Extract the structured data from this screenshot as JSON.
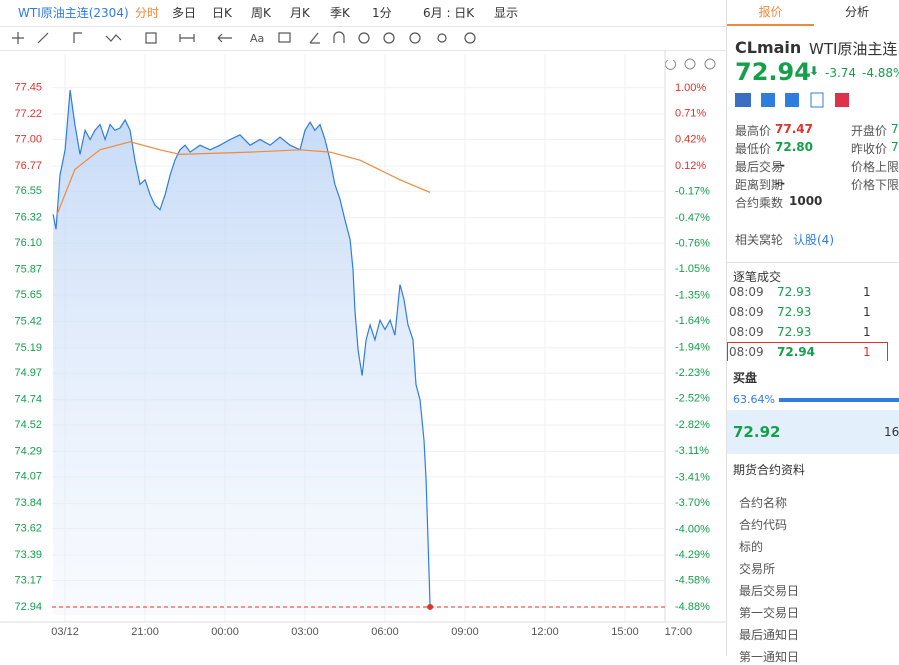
{
  "toolbar": {
    "symbol": "WTI原油主连(2304)",
    "tabs": [
      "分时",
      "多日",
      "日K",
      "周K",
      "月K",
      "季K",
      "1分",
      "6月 : 日K",
      "显示"
    ]
  },
  "chart_data": {
    "type": "line",
    "xlim": [
      -0.49,
      22.5
    ],
    "xticks": [
      {
        "value": 0,
        "label": "03/12"
      },
      {
        "value": 3,
        "label": "21:00"
      },
      {
        "value": 6,
        "label": "00:00"
      },
      {
        "value": 9,
        "label": "03:00"
      },
      {
        "value": 12,
        "label": "06:00"
      },
      {
        "value": 15,
        "label": "09:00"
      },
      {
        "value": 18,
        "label": "12:00"
      },
      {
        "value": 21,
        "label": "15:00"
      },
      {
        "value": 23,
        "label": "17:00"
      }
    ],
    "ylim": [
      72.87,
      77.56
    ],
    "yticks": [
      77.45,
      77.22,
      {
        "value": 77,
        "label": "77.00"
      },
      76.77,
      76.55,
      76.32,
      {
        "value": 76.1,
        "label": "76.10"
      },
      75.87,
      75.65,
      75.42,
      75.19,
      74.97,
      74.74,
      74.52,
      74.29,
      74.07,
      73.84,
      73.62,
      73.39,
      73.17,
      72.94
    ],
    "y2lim": [
      -4.97,
      1.15
    ],
    "y2ticks": [
      {
        "value": 1,
        "label": "1.00%"
      },
      {
        "value": 0.71,
        "label": "0.71%"
      },
      {
        "value": 0.42,
        "label": "0.42%"
      },
      {
        "value": 0.12,
        "label": "0.12%"
      },
      {
        "value": -0.17,
        "label": "-0.17%"
      },
      {
        "value": -0.47,
        "label": "-0.47%"
      },
      {
        "value": -0.76,
        "label": "-0.76%"
      },
      {
        "value": -1.05,
        "label": "-1.05%"
      },
      {
        "value": -1.35,
        "label": "-1.35%"
      },
      {
        "value": -1.64,
        "label": "-1.64%"
      },
      {
        "value": -1.94,
        "label": "-1.94%"
      },
      {
        "value": -2.23,
        "label": "-2.23%"
      },
      {
        "value": -2.52,
        "label": "-2.52%"
      },
      {
        "value": -2.82,
        "label": "-2.82%"
      },
      {
        "value": -3.11,
        "label": "-3.11%"
      },
      {
        "value": -3.41,
        "label": "-3.41%"
      },
      {
        "value": -3.7,
        "label": "-3.70%"
      },
      {
        "value": -4,
        "label": "-4.00%"
      },
      {
        "value": -4.29,
        "label": "-4.29%"
      },
      {
        "value": -4.58,
        "label": "-4.58%"
      },
      {
        "value": -4.88,
        "label": "-4.88%"
      }
    ],
    "grid": true,
    "up_color": "#e0312b",
    "down_color": "#14a04a",
    "series": [
      {
        "color": "#2f7de1",
        "area": true,
        "x": [
          -0.45,
          -0.34,
          -0.19,
          0,
          0.19,
          0.37,
          0.56,
          0.75,
          0.94,
          1.12,
          1.31,
          1.5,
          1.69,
          1.87,
          2.06,
          2.25,
          2.44,
          2.62,
          2.81,
          3,
          3.19,
          3.37,
          3.56,
          3.75,
          3.94,
          4.12,
          4.31,
          4.5,
          4.69,
          5.06,
          5.44,
          5.81,
          6.19,
          6.56,
          6.94,
          7.31,
          7.69,
          8.06,
          8.44,
          8.81,
          9,
          9.19,
          9.37,
          9.56,
          9.75,
          9.94,
          10.12,
          10.31,
          10.5,
          10.69,
          10.8,
          10.87,
          10.99,
          11.14,
          11.29,
          11.44,
          11.62,
          11.81,
          12,
          12.19,
          12.37,
          12.56,
          12.71,
          12.86,
          13.05,
          13.16,
          13.31,
          13.46,
          13.54,
          13.61,
          13.69
        ],
        "values": [
          76.35,
          76.22,
          76.69,
          76.91,
          77.43,
          77.13,
          76.87,
          77.08,
          77.0,
          77.08,
          77.13,
          77.0,
          77.13,
          77.08,
          77.1,
          77.17,
          77.08,
          76.82,
          76.61,
          76.65,
          76.52,
          76.43,
          76.39,
          76.52,
          76.69,
          76.82,
          76.91,
          76.95,
          76.89,
          76.95,
          76.91,
          76.95,
          77.0,
          77.04,
          76.95,
          77.0,
          76.95,
          77.02,
          76.95,
          76.91,
          77.08,
          77.15,
          77.08,
          77.13,
          77.0,
          76.82,
          76.61,
          76.48,
          76.3,
          76.13,
          75.87,
          75.52,
          75.17,
          74.95,
          75.26,
          75.39,
          75.26,
          75.43,
          75.35,
          75.43,
          75.3,
          75.74,
          75.61,
          75.39,
          75.26,
          74.87,
          74.74,
          74.39,
          74.04,
          73.52,
          72.94
        ]
      },
      {
        "color": "#f08a3a",
        "area": false,
        "x": [
          -0.3,
          0.37,
          1.31,
          2.44,
          3.56,
          4.31,
          6.94,
          8.81,
          9.94,
          11.06,
          12.56,
          13.69
        ],
        "values": [
          76.35,
          76.74,
          76.91,
          76.98,
          76.91,
          76.87,
          76.89,
          76.91,
          76.89,
          76.82,
          76.65,
          76.54
        ]
      }
    ]
  },
  "right_panel": {
    "tabs": [
      "报价",
      "分析"
    ],
    "code": "CLmain",
    "name": "WTI原油主连",
    "price": "72.94",
    "change": "-3.74",
    "change_pct": "-4.88%",
    "stats": [
      [
        "最高价",
        "77.47",
        "开盘价",
        "7"
      ],
      [
        "最低价",
        "72.80",
        "昨收价",
        "7"
      ],
      [
        "最后交易",
        "--",
        "价格上限",
        ""
      ],
      [
        "距离到期",
        "--",
        "价格下限",
        ""
      ]
    ],
    "multiplier_label": "合约乘数",
    "multiplier": "1000",
    "warrant_label": "相关窝轮",
    "warrant": "认股(4)",
    "trades_title": "逐笔成交",
    "trades": [
      [
        "08:09",
        "72.93",
        "1"
      ],
      [
        "08:09",
        "72.93",
        "1"
      ],
      [
        "08:09",
        "72.93",
        "1"
      ],
      [
        "08:09",
        "72.94",
        "1"
      ]
    ],
    "bid_title": "买盘",
    "bid_pct": "63.64%",
    "bid_price": "72.92",
    "bid_vol": "16",
    "info_title": "期货合约资料",
    "info_items": [
      "合约名称",
      "合约代码",
      "标的",
      "交易所",
      "最后交易日",
      "第一交易日",
      "最后通知日",
      "第一通知日"
    ]
  }
}
